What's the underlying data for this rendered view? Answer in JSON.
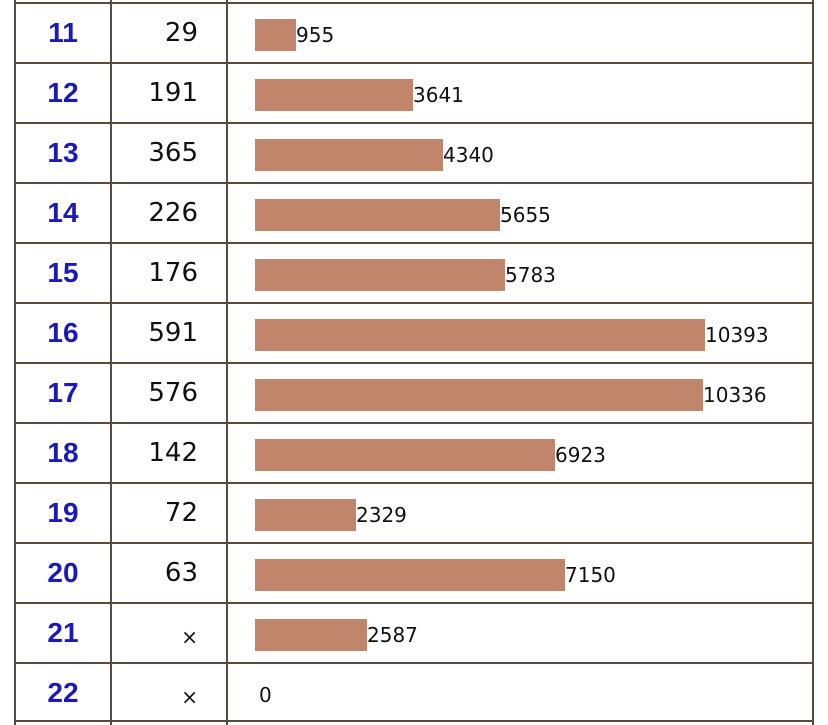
{
  "chart_data": {
    "type": "bar",
    "orientation": "horizontal",
    "categories": [
      "11",
      "12",
      "13",
      "14",
      "15",
      "16",
      "17",
      "18",
      "19",
      "20",
      "21",
      "22"
    ],
    "counts": [
      "29",
      "191",
      "365",
      "226",
      "176",
      "591",
      "576",
      "142",
      "72",
      "63",
      "×",
      "×"
    ],
    "values": [
      955,
      3641,
      4340,
      5655,
      5783,
      10393,
      10336,
      6923,
      2329,
      7150,
      2587,
      0
    ],
    "xlim": [
      0,
      11000
    ],
    "bar_color": "#c1856c",
    "label_color": "#1a1ab8",
    "grid": false
  }
}
